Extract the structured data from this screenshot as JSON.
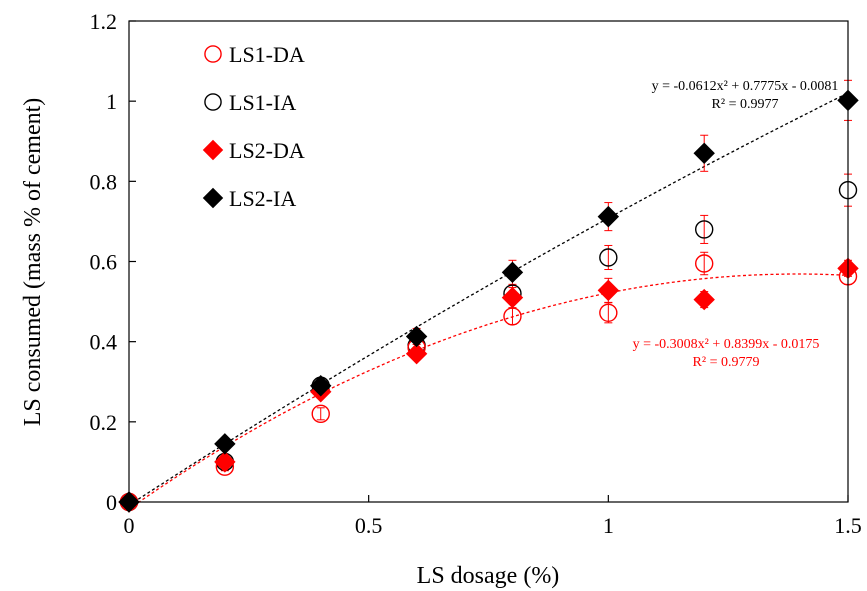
{
  "chart_data": {
    "type": "scatter",
    "xlabel": "LS dosage (%)",
    "ylabel": "LS consumed (mass % of cement)",
    "xlim": [
      0,
      1.5
    ],
    "ylim": [
      0,
      1.2
    ],
    "xticks": [
      0,
      0.5,
      1,
      1.5
    ],
    "xtick_labels": [
      "0",
      "0.5",
      "1",
      "1.5"
    ],
    "yticks": [
      0,
      0.2,
      0.4,
      0.6,
      0.8,
      1,
      1.2
    ],
    "ytick_labels": [
      "0",
      "0.2",
      "0.4",
      "0.6",
      "0.8",
      "1",
      "1.2"
    ],
    "grid": false,
    "legend_position": "top-left",
    "series": [
      {
        "name": "LS1-DA",
        "marker": "circle-open",
        "color": "#ff0000",
        "x": [
          0,
          0.2,
          0.4,
          0.6,
          0.8,
          1.0,
          1.2,
          1.5
        ],
        "y": [
          0,
          0.088,
          0.22,
          0.385,
          0.463,
          0.472,
          0.595,
          0.563
        ],
        "error": [
          0,
          0.01,
          0.015,
          0.02,
          0.02,
          0.025,
          0.028,
          0.02
        ]
      },
      {
        "name": "LS1-IA",
        "marker": "circle-open",
        "color": "#000000",
        "x": [
          0,
          0.2,
          0.4,
          0.6,
          0.8,
          1.0,
          1.2,
          1.5
        ],
        "y": [
          0,
          0.1,
          0.29,
          0.39,
          0.52,
          0.61,
          0.68,
          0.778
        ],
        "error": [
          0,
          0.01,
          0.01,
          0.015,
          0.02,
          0.03,
          0.035,
          0.04
        ]
      },
      {
        "name": "LS2-DA",
        "marker": "diamond-filled",
        "color": "#ff0000",
        "x": [
          0,
          0.2,
          0.4,
          0.6,
          0.8,
          1.0,
          1.2,
          1.5
        ],
        "y": [
          0,
          0.1,
          0.275,
          0.37,
          0.51,
          0.528,
          0.505,
          0.583
        ],
        "error": [
          0,
          0.01,
          0.01,
          0.015,
          0.025,
          0.03,
          0.02,
          0.02
        ]
      },
      {
        "name": "LS2-IA",
        "marker": "diamond-filled",
        "color": "#000000",
        "x": [
          0,
          0.2,
          0.4,
          0.6,
          0.8,
          1.0,
          1.2,
          1.5
        ],
        "y": [
          0,
          0.145,
          0.29,
          0.413,
          0.573,
          0.712,
          0.87,
          1.002
        ],
        "error": [
          0,
          0.01,
          0.01,
          0.02,
          0.03,
          0.035,
          0.045,
          0.05
        ]
      }
    ],
    "trendlines": [
      {
        "fit_for": "LS1-DA",
        "color": "#ff0000",
        "coefficients": [
          -0.3008,
          0.8399,
          -0.0175
        ],
        "equation": "y = -0.3008x² + 0.8399x - 0.0175",
        "r2": "R² = 0.9779"
      },
      {
        "fit_for": "LS2-IA",
        "color": "#000000",
        "coefficients": [
          -0.0612,
          0.7775,
          -0.0081
        ],
        "equation": "y = -0.0612x² + 0.7775x - 0.0081",
        "r2": "R² = 0.9977"
      }
    ],
    "colors": {
      "red": "#ff0000",
      "errorbar": "#ff0000",
      "black": "#000000"
    }
  }
}
